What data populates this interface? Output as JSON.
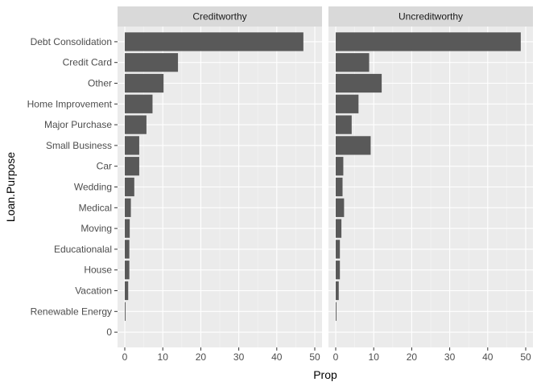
{
  "chart_data": {
    "type": "bar",
    "orientation": "horizontal",
    "facet_layout": "two panels side by side",
    "xlabel": "Prop",
    "ylabel": "Loan.Purpose",
    "xlim": [
      0,
      50
    ],
    "xticks": [
      0,
      10,
      20,
      30,
      40,
      50
    ],
    "grid": true,
    "categories": [
      "Debt Consolidation",
      "Credit Card",
      "Other",
      "Home Improvement",
      "Major Purchase",
      "Small Business",
      "Car",
      "Wedding",
      "Medical",
      "Moving",
      "Educationalal",
      "House",
      "Vacation",
      "Renewable Energy",
      "0"
    ],
    "panels": [
      {
        "title": "Creditworthy",
        "values": [
          47.0,
          14.0,
          10.2,
          7.3,
          5.7,
          3.8,
          3.8,
          2.5,
          1.6,
          1.3,
          1.2,
          1.2,
          0.9,
          0.2,
          0
        ]
      },
      {
        "title": "Uncreditworthy",
        "values": [
          48.7,
          8.8,
          12.1,
          6.0,
          4.2,
          9.2,
          2.0,
          1.8,
          2.2,
          1.5,
          1.1,
          1.1,
          0.8,
          0.2,
          0
        ]
      }
    ],
    "colors": {
      "bar": "#595959",
      "panel_background": "#ebebeb",
      "grid_major": "#ffffff",
      "strip_background": "#d9d9d9"
    }
  }
}
